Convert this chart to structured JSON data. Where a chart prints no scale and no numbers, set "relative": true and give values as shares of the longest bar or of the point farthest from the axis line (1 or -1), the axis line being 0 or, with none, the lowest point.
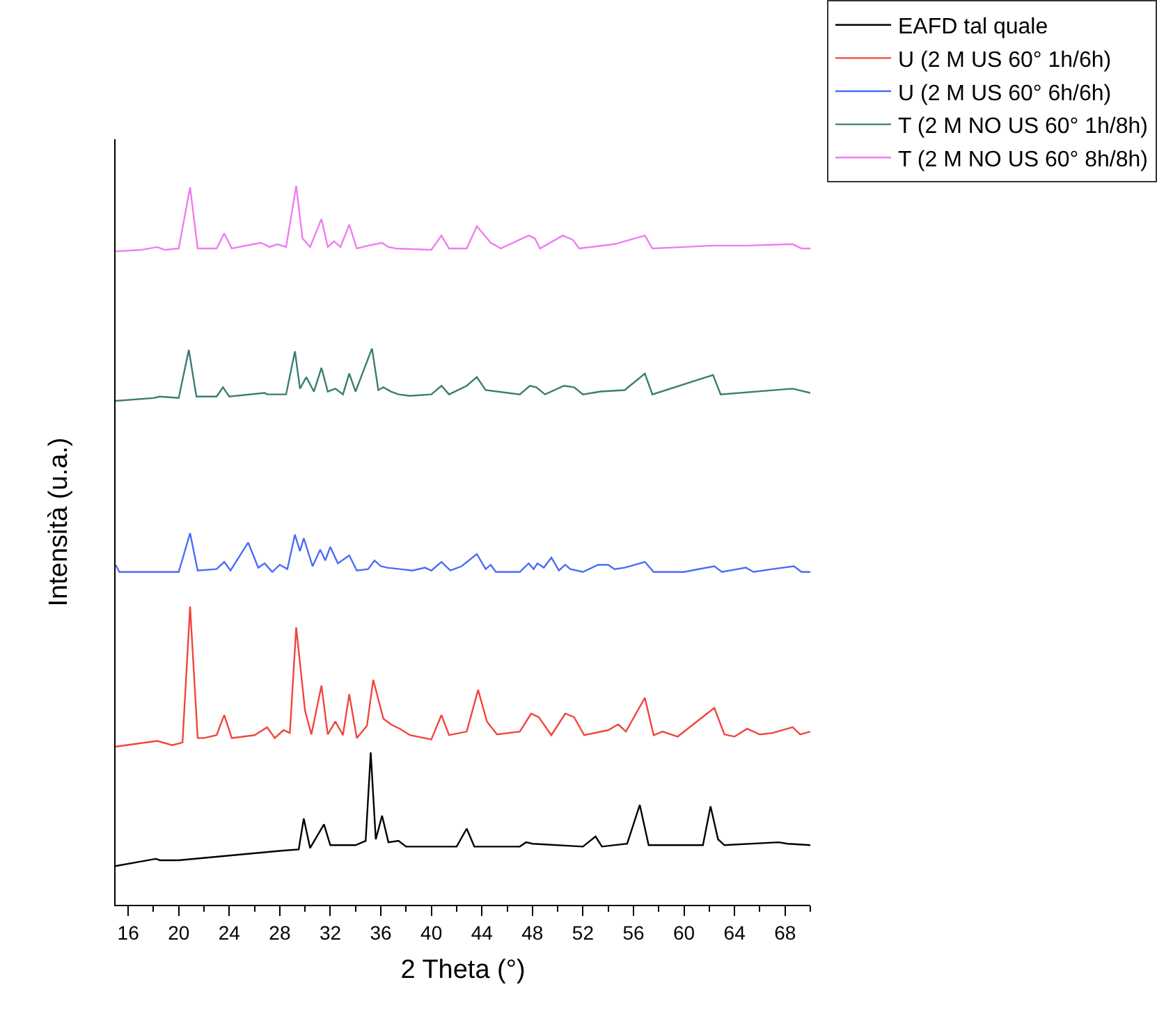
{
  "chart_data": {
    "type": "line",
    "xlabel": "2 Theta (°)",
    "ylabel": "Intensità (u.a.)",
    "relative": true,
    "xlim": [
      15,
      70
    ],
    "xticks": [
      16,
      20,
      24,
      28,
      32,
      36,
      40,
      44,
      48,
      52,
      56,
      60,
      64,
      68
    ],
    "legend": "top right",
    "marker": "none",
    "line_style": "solid",
    "series": [
      {
        "name": "EAFD tal quale",
        "color": "#000000",
        "x": [
          15,
          18.2,
          18.5,
          20,
          28,
          29.5,
          29.9,
          30.4,
          31.5,
          32,
          34,
          34.8,
          35.2,
          35.6,
          36.1,
          36.6,
          37.4,
          38,
          42,
          42.8,
          43.4,
          47,
          47.5,
          48,
          52,
          53,
          53.5,
          55.5,
          56.5,
          57.2,
          61.5,
          62.1,
          62.7,
          63.2,
          67.5,
          68.2,
          70
        ],
        "values": [
          0.054,
          0.064,
          0.062,
          0.062,
          0.075,
          0.077,
          0.12,
          0.079,
          0.112,
          0.083,
          0.083,
          0.089,
          0.212,
          0.091,
          0.124,
          0.087,
          0.089,
          0.081,
          0.081,
          0.106,
          0.081,
          0.081,
          0.087,
          0.085,
          0.081,
          0.095,
          0.081,
          0.085,
          0.139,
          0.083,
          0.083,
          0.137,
          0.091,
          0.083,
          0.087,
          0.085,
          0.083
        ]
      },
      {
        "name": "U (2 M US 60° 1h/6h)",
        "color": "#f0463c",
        "x": [
          15,
          18.3,
          19.5,
          20.3,
          20.9,
          21.5,
          22,
          23,
          23.6,
          24.2,
          26,
          27,
          27.6,
          28.3,
          28.8,
          29.3,
          30,
          30.5,
          31.3,
          31.8,
          32.4,
          33,
          33.5,
          34.1,
          34.9,
          35.4,
          36.2,
          36.8,
          37.5,
          38.3,
          40,
          40.8,
          41.4,
          42.8,
          43.7,
          44.4,
          45.2,
          47,
          47.9,
          48.5,
          49.5,
          50.6,
          51.3,
          52.1,
          54,
          54.8,
          55.4,
          56.9,
          57.6,
          58.3,
          59.5,
          62.4,
          63.2,
          64,
          65,
          66,
          67,
          68.6,
          69.2,
          70
        ],
        "values": [
          0.22,
          0.228,
          0.222,
          0.226,
          0.415,
          0.232,
          0.232,
          0.236,
          0.264,
          0.232,
          0.236,
          0.247,
          0.232,
          0.243,
          0.239,
          0.386,
          0.27,
          0.237,
          0.305,
          0.237,
          0.255,
          0.236,
          0.293,
          0.232,
          0.249,
          0.313,
          0.259,
          0.251,
          0.245,
          0.236,
          0.23,
          0.264,
          0.236,
          0.241,
          0.299,
          0.255,
          0.237,
          0.241,
          0.266,
          0.261,
          0.236,
          0.266,
          0.261,
          0.236,
          0.243,
          0.251,
          0.241,
          0.288,
          0.236,
          0.241,
          0.234,
          0.274,
          0.237,
          0.234,
          0.245,
          0.237,
          0.239,
          0.247,
          0.237,
          0.241
        ]
      },
      {
        "name": "U (2 M US 60° 6h/6h)",
        "color": "#4a6cf7",
        "x": [
          15,
          15.3,
          20,
          20.9,
          21.5,
          23,
          23.6,
          24.1,
          25.5,
          26.3,
          26.8,
          27.4,
          28,
          28.6,
          29.2,
          29.6,
          29.9,
          30.6,
          31.2,
          31.6,
          32,
          32.6,
          33.5,
          34.1,
          35,
          35.5,
          36,
          36.5,
          37.5,
          38.5,
          39.5,
          40,
          40.8,
          41.5,
          42.4,
          43.6,
          44.3,
          44.7,
          45.1,
          47,
          47.7,
          48.1,
          48.4,
          48.9,
          49.5,
          50.1,
          50.6,
          51,
          52,
          53.2,
          54,
          54.5,
          55.3,
          56.9,
          57.6,
          60,
          62.4,
          63,
          64.9,
          65.5,
          67,
          68.7,
          69.3,
          70
        ],
        "values": [
          0.473,
          0.463,
          0.463,
          0.517,
          0.465,
          0.467,
          0.477,
          0.465,
          0.504,
          0.469,
          0.475,
          0.463,
          0.473,
          0.467,
          0.515,
          0.492,
          0.51,
          0.471,
          0.494,
          0.479,
          0.498,
          0.475,
          0.486,
          0.465,
          0.467,
          0.479,
          0.471,
          0.469,
          0.467,
          0.465,
          0.469,
          0.465,
          0.477,
          0.465,
          0.471,
          0.488,
          0.467,
          0.473,
          0.463,
          0.463,
          0.475,
          0.467,
          0.475,
          0.469,
          0.483,
          0.465,
          0.473,
          0.467,
          0.463,
          0.473,
          0.473,
          0.467,
          0.469,
          0.477,
          0.463,
          0.463,
          0.471,
          0.463,
          0.469,
          0.463,
          0.467,
          0.471,
          0.463,
          0.463
        ]
      },
      {
        "name": "T (2 M NO US 60° 1h/8h)",
        "color": "#3a7d74",
        "x": [
          15,
          18,
          18.5,
          20,
          20.8,
          21.4,
          23,
          23.5,
          24,
          26.8,
          27,
          28.5,
          29.2,
          29.6,
          30.1,
          30.7,
          31.3,
          31.8,
          32.4,
          33,
          33.5,
          34,
          35.3,
          35.8,
          36.2,
          36.8,
          37.4,
          38.3,
          40,
          40.8,
          41.4,
          42.8,
          43.6,
          44.3,
          47,
          47.8,
          48.3,
          49,
          50.5,
          51.3,
          52,
          53.4,
          55.3,
          56.9,
          57.5,
          62.3,
          62.9,
          68.6,
          70
        ],
        "values": [
          0.701,
          0.705,
          0.707,
          0.705,
          0.772,
          0.707,
          0.707,
          0.72,
          0.707,
          0.712,
          0.71,
          0.71,
          0.77,
          0.718,
          0.734,
          0.714,
          0.747,
          0.714,
          0.718,
          0.71,
          0.739,
          0.714,
          0.774,
          0.716,
          0.72,
          0.714,
          0.71,
          0.708,
          0.71,
          0.722,
          0.71,
          0.722,
          0.734,
          0.716,
          0.71,
          0.722,
          0.72,
          0.71,
          0.722,
          0.72,
          0.71,
          0.714,
          0.716,
          0.739,
          0.71,
          0.737,
          0.71,
          0.718,
          0.712
        ]
      },
      {
        "name": "T (2 M NO US 60° 8h/8h)",
        "color": "#f07cf0",
        "x": [
          15,
          17,
          18.3,
          18.9,
          20,
          20.9,
          21.5,
          23,
          23.6,
          24.2,
          26.5,
          27.2,
          27.8,
          28.5,
          29.3,
          29.8,
          30.4,
          31.3,
          31.8,
          32.3,
          32.8,
          33.5,
          34.1,
          35,
          35.6,
          36.1,
          36.6,
          37.2,
          40,
          40.8,
          41.4,
          42.8,
          43.6,
          44.7,
          45.5,
          47.7,
          48.2,
          48.6,
          50.4,
          51.2,
          51.7,
          54.5,
          56.9,
          57.5,
          60,
          62.3,
          64.9,
          68.6,
          69.3,
          70
        ],
        "values": [
          0.909,
          0.911,
          0.915,
          0.911,
          0.913,
          0.998,
          0.913,
          0.913,
          0.934,
          0.913,
          0.921,
          0.915,
          0.919,
          0.915,
          1.0,
          0.927,
          0.915,
          0.954,
          0.915,
          0.923,
          0.915,
          0.946,
          0.913,
          0.917,
          0.919,
          0.921,
          0.915,
          0.913,
          0.911,
          0.931,
          0.913,
          0.913,
          0.944,
          0.921,
          0.913,
          0.931,
          0.927,
          0.913,
          0.931,
          0.925,
          0.913,
          0.919,
          0.931,
          0.913,
          0.915,
          0.917,
          0.917,
          0.919,
          0.913,
          0.913
        ]
      }
    ]
  }
}
